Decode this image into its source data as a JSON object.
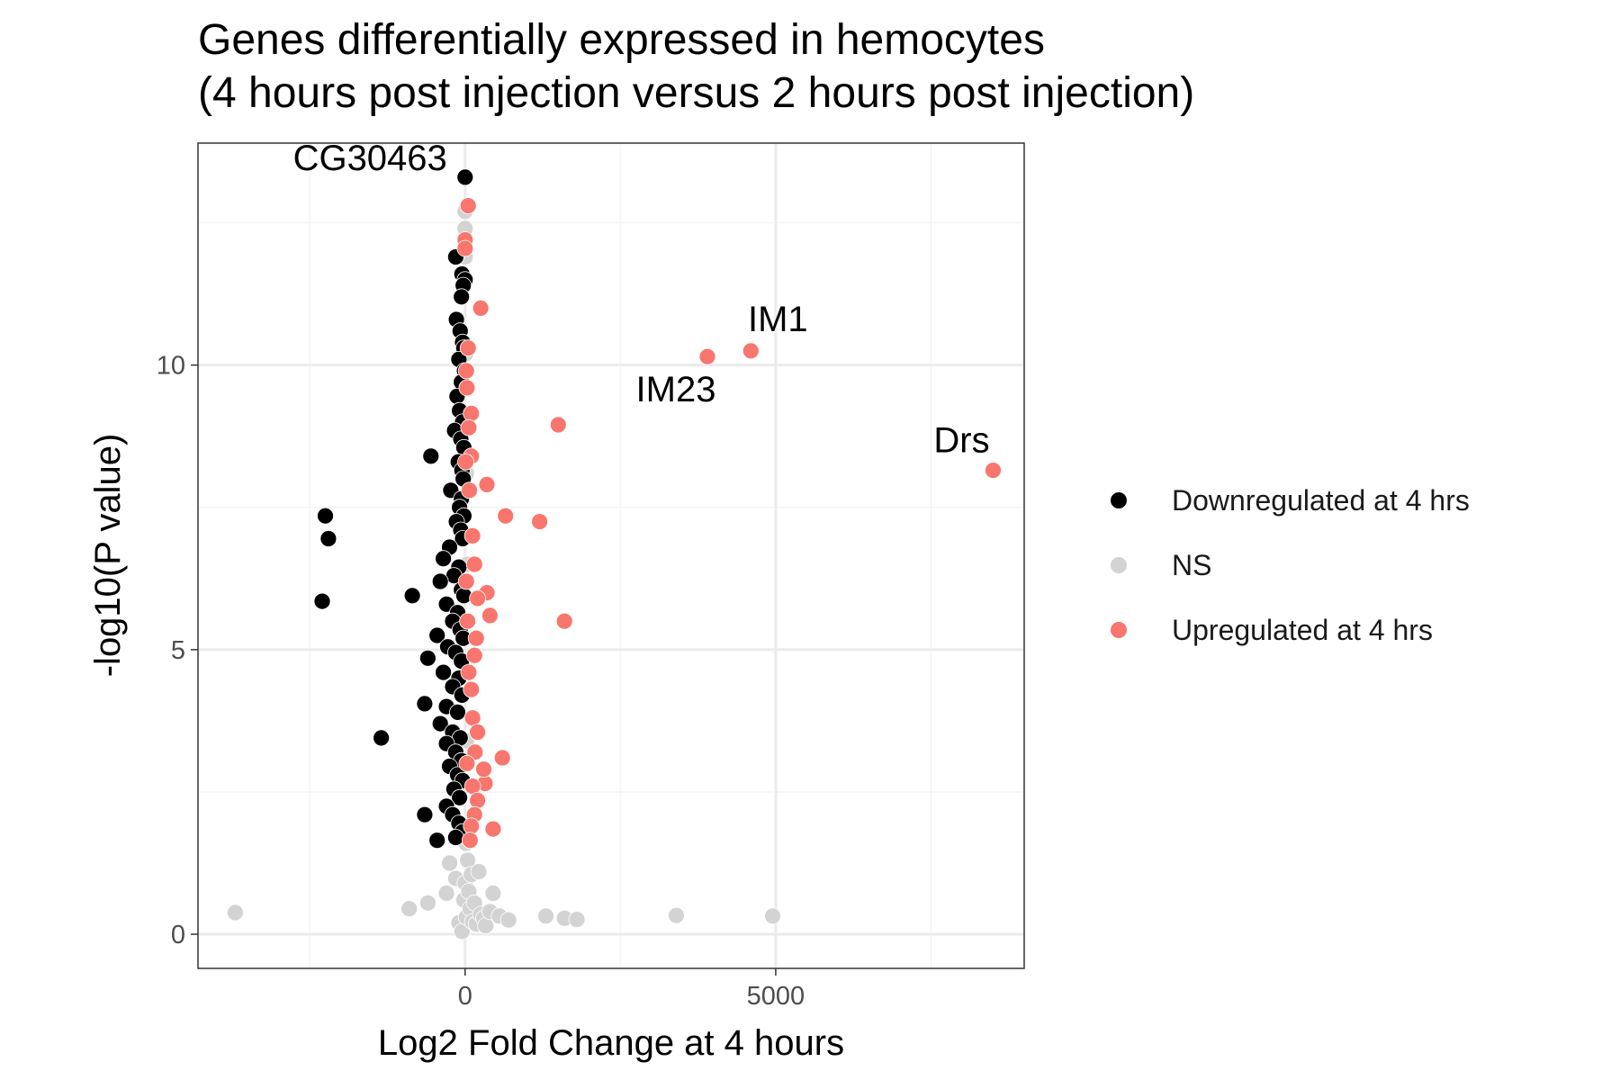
{
  "chart_data": {
    "type": "scatter",
    "title_line1": "Genes differentially expressed in hemocytes",
    "title_line2": "(4 hours post injection versus 2 hours post injection)",
    "xlabel": "Log2 Fold Change at 4 hours",
    "ylabel": "-log10(P value)",
    "xlim": [
      -4300,
      9000
    ],
    "ylim": [
      -0.6,
      13.9
    ],
    "x_ticks": [
      0,
      5000
    ],
    "y_ticks": [
      0,
      5,
      10
    ],
    "x_tick_labels": [
      "0",
      "5000"
    ],
    "y_tick_labels": [
      "0",
      "5",
      "10"
    ],
    "grid": true,
    "legend_position": "right",
    "colors": {
      "Downregulated at 4 hrs": "#000000",
      "NS": "#d3d3d3",
      "Upregulated at 4 hrs": "#f8766d",
      "grid_major": "#ebebeb",
      "grid_minor": "#f4f4f4",
      "panel_border": "#333333"
    },
    "legend": [
      {
        "label": "Downregulated at 4 hrs",
        "color": "#000000"
      },
      {
        "label": "NS",
        "color": "#d3d3d3"
      },
      {
        "label": "Upregulated at 4 hrs",
        "color": "#f8766d"
      }
    ],
    "series": [
      {
        "name": "NS",
        "points": [
          [
            -3700,
            0.38
          ],
          [
            -900,
            0.45
          ],
          [
            -600,
            0.55
          ],
          [
            -300,
            0.72
          ],
          [
            -250,
            1.25
          ],
          [
            -150,
            0.98
          ],
          [
            -100,
            0.2
          ],
          [
            -50,
            0.05
          ],
          [
            -20,
            0.6
          ],
          [
            0,
            0.9
          ],
          [
            20,
            0.3
          ],
          [
            40,
            1.3
          ],
          [
            60,
            0.75
          ],
          [
            80,
            0.45
          ],
          [
            100,
            1.05
          ],
          [
            120,
            0.22
          ],
          [
            150,
            0.55
          ],
          [
            180,
            0.18
          ],
          [
            220,
            1.1
          ],
          [
            250,
            0.35
          ],
          [
            300,
            0.28
          ],
          [
            330,
            0.15
          ],
          [
            400,
            0.4
          ],
          [
            450,
            0.72
          ],
          [
            550,
            0.32
          ],
          [
            700,
            0.25
          ],
          [
            1300,
            0.32
          ],
          [
            1600,
            0.28
          ],
          [
            1800,
            0.26
          ],
          [
            3400,
            0.33
          ],
          [
            4950,
            0.32
          ],
          [
            0,
            12.7
          ],
          [
            0,
            12.4
          ],
          [
            0,
            11.9
          ],
          [
            10,
            10.2
          ],
          [
            20,
            8.1
          ],
          [
            30,
            6.5
          ],
          [
            20,
            3.4
          ],
          [
            -10,
            2.6
          ],
          [
            15,
            1.6
          ]
        ]
      },
      {
        "name": "Downregulated at 4 hrs",
        "points": [
          [
            0,
            13.3
          ],
          [
            -150,
            11.9
          ],
          [
            -50,
            11.6
          ],
          [
            0,
            11.5
          ],
          [
            -30,
            11.4
          ],
          [
            -60,
            11.2
          ],
          [
            -140,
            10.8
          ],
          [
            -80,
            10.6
          ],
          [
            -40,
            10.4
          ],
          [
            -20,
            10.3
          ],
          [
            -100,
            10.1
          ],
          [
            -10,
            9.9
          ],
          [
            -60,
            9.7
          ],
          [
            -130,
            9.45
          ],
          [
            -90,
            9.2
          ],
          [
            -40,
            9.0
          ],
          [
            -170,
            8.85
          ],
          [
            -70,
            8.7
          ],
          [
            -20,
            8.55
          ],
          [
            -550,
            8.4
          ],
          [
            -110,
            8.3
          ],
          [
            -50,
            8.15
          ],
          [
            -30,
            8.0
          ],
          [
            -230,
            7.8
          ],
          [
            -60,
            7.65
          ],
          [
            -90,
            7.5
          ],
          [
            -20,
            7.35
          ],
          [
            -140,
            7.25
          ],
          [
            -70,
            7.1
          ],
          [
            -40,
            6.95
          ],
          [
            -250,
            6.8
          ],
          [
            -350,
            6.6
          ],
          [
            -100,
            6.45
          ],
          [
            -180,
            6.3
          ],
          [
            -400,
            6.2
          ],
          [
            -60,
            6.05
          ],
          [
            -20,
            5.95
          ],
          [
            -300,
            5.8
          ],
          [
            -120,
            5.65
          ],
          [
            -200,
            5.5
          ],
          [
            -80,
            5.35
          ],
          [
            -30,
            5.2
          ],
          [
            -450,
            5.25
          ],
          [
            -280,
            5.05
          ],
          [
            -150,
            4.95
          ],
          [
            -60,
            4.8
          ],
          [
            -600,
            4.85
          ],
          [
            -350,
            4.6
          ],
          [
            -100,
            4.5
          ],
          [
            -200,
            4.35
          ],
          [
            -50,
            4.2
          ],
          [
            -650,
            4.05
          ],
          [
            -300,
            4.0
          ],
          [
            -120,
            3.9
          ],
          [
            -400,
            3.7
          ],
          [
            -200,
            3.55
          ],
          [
            -80,
            3.45
          ],
          [
            -300,
            3.35
          ],
          [
            -150,
            3.2
          ],
          [
            -60,
            3.05
          ],
          [
            -250,
            2.95
          ],
          [
            -120,
            2.8
          ],
          [
            -40,
            2.7
          ],
          [
            -180,
            2.55
          ],
          [
            -90,
            2.4
          ],
          [
            -300,
            2.25
          ],
          [
            -200,
            2.1
          ],
          [
            -100,
            1.95
          ],
          [
            -40,
            1.8
          ],
          [
            -150,
            1.7
          ],
          [
            -2250,
            7.35
          ],
          [
            -2200,
            6.95
          ],
          [
            -2300,
            5.85
          ],
          [
            -1350,
            3.45
          ],
          [
            -850,
            5.95
          ],
          [
            -650,
            2.1
          ],
          [
            -450,
            1.65
          ]
        ]
      },
      {
        "name": "Upregulated at 4 hrs",
        "points": [
          [
            8500,
            8.15
          ],
          [
            4600,
            10.25
          ],
          [
            3900,
            10.15
          ],
          [
            1500,
            8.95
          ],
          [
            1200,
            7.25
          ],
          [
            650,
            7.35
          ],
          [
            350,
            7.9
          ],
          [
            1600,
            5.5
          ],
          [
            400,
            5.6
          ],
          [
            350,
            6.0
          ],
          [
            600,
            3.1
          ],
          [
            450,
            1.85
          ],
          [
            320,
            2.65
          ],
          [
            300,
            2.9
          ],
          [
            250,
            11.0
          ],
          [
            50,
            12.8
          ],
          [
            0,
            12.2
          ],
          [
            0,
            12.05
          ],
          [
            100,
            9.15
          ],
          [
            50,
            10.3
          ],
          [
            30,
            9.6
          ],
          [
            60,
            8.9
          ],
          [
            100,
            8.4
          ],
          [
            70,
            7.8
          ],
          [
            120,
            7.0
          ],
          [
            150,
            6.5
          ],
          [
            200,
            5.9
          ],
          [
            180,
            5.2
          ],
          [
            150,
            4.9
          ],
          [
            100,
            4.3
          ],
          [
            120,
            3.8
          ],
          [
            200,
            3.55
          ],
          [
            160,
            3.2
          ],
          [
            120,
            2.6
          ],
          [
            200,
            2.35
          ],
          [
            150,
            2.1
          ],
          [
            100,
            1.9
          ],
          [
            80,
            1.65
          ],
          [
            40,
            5.5
          ],
          [
            60,
            4.6
          ],
          [
            30,
            3.0
          ],
          [
            20,
            6.2
          ],
          [
            10,
            8.3
          ],
          [
            20,
            9.9
          ]
        ]
      }
    ],
    "annotations": [
      {
        "label": "CG30463",
        "x": 0,
        "y": 13.3
      },
      {
        "label": "IM1",
        "x": 4600,
        "y": 10.25
      },
      {
        "label": "IM23",
        "x": 3900,
        "y": 10.15
      },
      {
        "label": "Drs",
        "x": 8500,
        "y": 8.15
      }
    ]
  }
}
